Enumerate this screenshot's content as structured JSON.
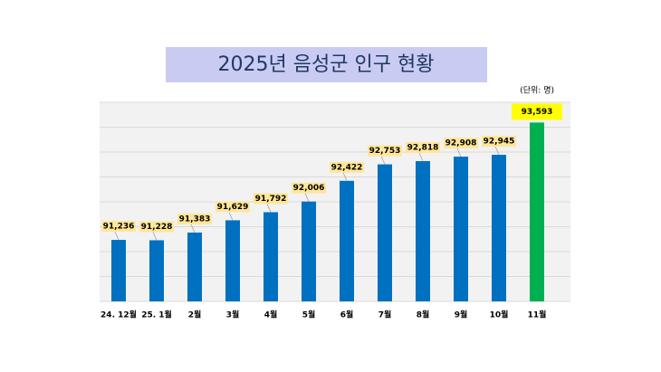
{
  "chart_data": {
    "type": "bar",
    "title": "2025년 음성군 인구 현황",
    "unit_label": "(단위: 명)",
    "categories": [
      "24. 12월",
      "25. 1월",
      "2월",
      "3월",
      "4월",
      "5월",
      "6월",
      "7월",
      "8월",
      "9월",
      "10월",
      "11월"
    ],
    "values": [
      91236,
      91228,
      91383,
      91629,
      91792,
      92006,
      92422,
      92753,
      92818,
      92908,
      92945,
      93593
    ],
    "value_labels": [
      "91,236",
      "91,228",
      "91,383",
      "91,629",
      "91,792",
      "92,006",
      "92,422",
      "92,753",
      "92,818",
      "92,908",
      "92,945",
      "93,593"
    ],
    "colors": [
      "#0070c0",
      "#0070c0",
      "#0070c0",
      "#0070c0",
      "#0070c0",
      "#0070c0",
      "#0070c0",
      "#0070c0",
      "#0070c0",
      "#0070c0",
      "#0070c0",
      "#00b050"
    ],
    "ylim": [
      90000,
      94000
    ],
    "yticks": [
      90000,
      90500,
      91000,
      91500,
      92000,
      92500,
      93000,
      93500,
      94000
    ],
    "grid": true
  }
}
